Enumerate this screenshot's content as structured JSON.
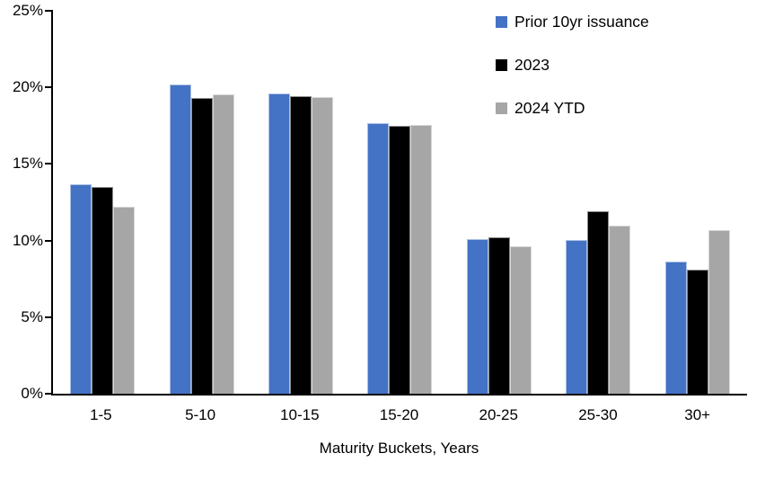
{
  "chart_data": {
    "type": "bar",
    "title": "",
    "xlabel": "Maturity Buckets, Years",
    "ylabel": "",
    "ylim": [
      0,
      25
    ],
    "yticks": [
      0,
      5,
      10,
      15,
      20,
      25
    ],
    "ytick_labels": [
      "0%",
      "5%",
      "10%",
      "15%",
      "20%",
      "25%"
    ],
    "grid": false,
    "legend_position": "top-right",
    "axis_color": "#000000",
    "background_color": "#ffffff",
    "categories": [
      "1-5",
      "5-10",
      "10-15",
      "15-20",
      "20-25",
      "25-30",
      "30+"
    ],
    "series": [
      {
        "name": "Prior 10yr issuance",
        "color": "#4472C4",
        "values": [
          13.7,
          20.2,
          19.6,
          17.65,
          10.1,
          10.05,
          8.6
        ]
      },
      {
        "name": "2023",
        "color": "#000000",
        "values": [
          13.5,
          19.3,
          19.45,
          17.5,
          10.2,
          11.9,
          8.1
        ]
      },
      {
        "name": "2024 YTD",
        "color": "#A6A6A6",
        "values": [
          12.2,
          19.55,
          19.35,
          17.55,
          9.6,
          11.0,
          10.7
        ]
      }
    ]
  }
}
